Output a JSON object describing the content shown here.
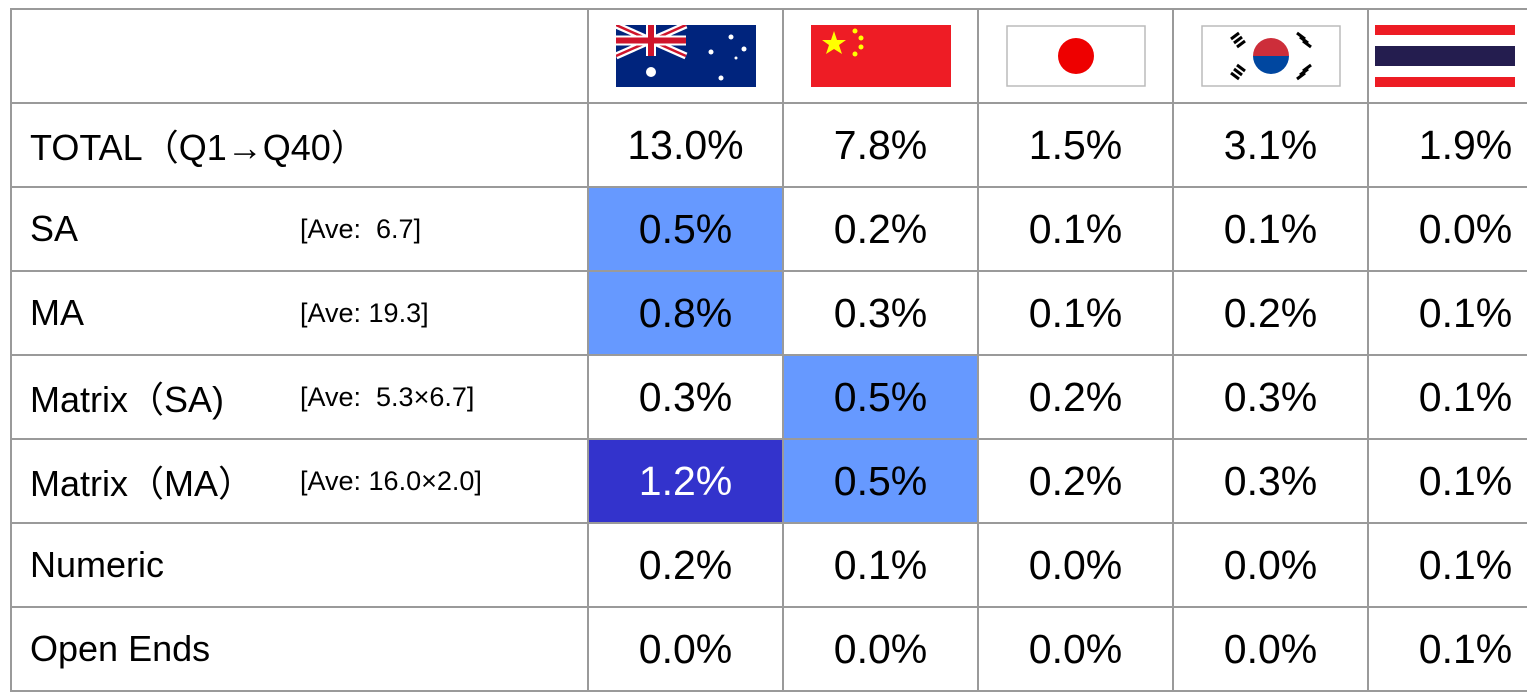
{
  "table": {
    "rows": [
      {
        "label": "TOTAL（Q1→Q40）",
        "values": [
          "13.0%",
          "7.8%",
          "1.5%",
          "3.1%",
          "1.9%"
        ]
      },
      {
        "label": "SA",
        "note": "[Ave:  6.7]",
        "values": [
          "0.5%",
          "0.2%",
          "0.1%",
          "0.1%",
          "0.0%"
        ]
      },
      {
        "label": "MA",
        "note": "[Ave: 19.3]",
        "values": [
          "0.8%",
          "0.3%",
          "0.1%",
          "0.2%",
          "0.1%"
        ]
      },
      {
        "label": "Matrix（SA)",
        "note": "[Ave:  5.3×6.7]",
        "values": [
          "0.3%",
          "0.5%",
          "0.2%",
          "0.3%",
          "0.1%"
        ]
      },
      {
        "label": "Matrix（MA）",
        "note": "[Ave: 16.0×2.0]",
        "values": [
          "1.2%",
          "0.5%",
          "0.2%",
          "0.3%",
          "0.1%"
        ]
      },
      {
        "label": "Numeric",
        "values": [
          "0.2%",
          "0.1%",
          "0.0%",
          "0.0%",
          "0.1%"
        ]
      },
      {
        "label": "Open Ends",
        "values": [
          "0.0%",
          "0.0%",
          "0.0%",
          "0.0%",
          "0.1%"
        ]
      }
    ]
  }
}
